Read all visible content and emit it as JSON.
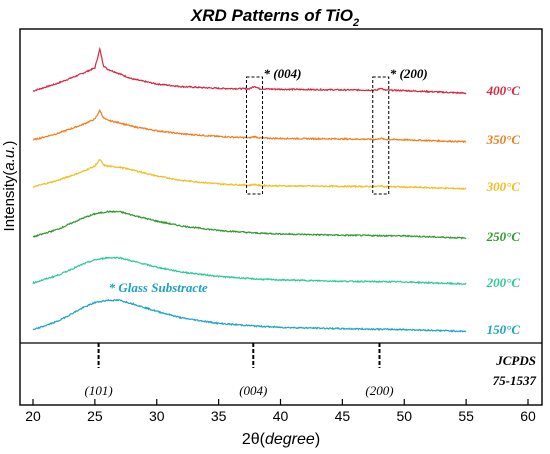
{
  "chart_data": {
    "type": "line",
    "title": "XRD Patterns of TiO",
    "title_subscript": "2",
    "xlabel_prefix": "2θ(",
    "xlabel_italic": "degree",
    "xlabel_suffix": ")",
    "ylabel_prefix": "Intensity(",
    "ylabel_italic": "a.u.",
    "ylabel_suffix": ")",
    "xlim": [
      20,
      60
    ],
    "x_ticks": [
      "20",
      "25",
      "30",
      "35",
      "40",
      "45",
      "50",
      "55",
      "60"
    ],
    "grid": false,
    "legend": "series labels at right end of each curve",
    "x_range_measured": [
      20,
      55
    ],
    "series": [
      {
        "name": "400°C",
        "color": "#d7263d",
        "x": [
          20,
          22,
          24,
          25,
          25.4,
          25.7,
          26,
          27,
          28,
          30,
          32,
          35,
          37.5,
          37.9,
          38.3,
          40,
          45,
          47.8,
          48.1,
          48.4,
          50,
          55
        ],
        "y": [
          0.0,
          0.35,
          0.8,
          1.05,
          1.9,
          1.15,
          1.0,
          0.78,
          0.55,
          0.32,
          0.2,
          0.12,
          0.1,
          0.22,
          0.1,
          0.08,
          0.05,
          0.04,
          0.14,
          0.04,
          0.02,
          -0.1
        ]
      },
      {
        "name": "350°C",
        "color": "#f07d1a",
        "x": [
          20,
          22,
          24,
          25,
          25.4,
          25.7,
          26,
          27,
          28,
          30,
          32,
          35,
          37.5,
          37.9,
          38.3,
          40,
          45,
          47.8,
          48.1,
          48.4,
          50,
          55
        ],
        "y": [
          0.0,
          0.3,
          0.7,
          0.95,
          1.35,
          1.0,
          0.9,
          0.78,
          0.62,
          0.42,
          0.28,
          0.16,
          0.1,
          0.16,
          0.09,
          0.07,
          0.05,
          0.03,
          0.08,
          0.03,
          0.01,
          -0.08
        ]
      },
      {
        "name": "300°C",
        "color": "#f2bd1d",
        "x": [
          20,
          22,
          24,
          25,
          25.4,
          25.7,
          26,
          27,
          28,
          30,
          32,
          35,
          37.5,
          37.9,
          38.3,
          40,
          45,
          47.8,
          48.1,
          48.4,
          50,
          55
        ],
        "y": [
          0.0,
          0.3,
          0.7,
          0.95,
          1.25,
          1.0,
          0.95,
          0.9,
          0.78,
          0.5,
          0.3,
          0.14,
          0.08,
          0.12,
          0.07,
          0.05,
          0.03,
          0.02,
          0.06,
          0.02,
          0.0,
          -0.08
        ]
      },
      {
        "name": "250°C",
        "color": "#2e9a2e",
        "x": [
          20,
          22,
          24,
          25,
          26,
          27,
          28,
          30,
          32,
          35,
          38,
          40,
          45,
          50,
          55
        ],
        "y": [
          0.0,
          0.35,
          0.85,
          1.05,
          1.15,
          1.15,
          1.0,
          0.72,
          0.5,
          0.3,
          0.18,
          0.14,
          0.08,
          0.05,
          -0.05
        ]
      },
      {
        "name": "200°C",
        "color": "#2cc99a",
        "x": [
          20,
          22,
          24,
          25,
          26,
          27,
          28,
          30,
          32,
          35,
          38,
          40,
          45,
          50,
          55
        ],
        "y": [
          0.0,
          0.35,
          0.85,
          1.05,
          1.15,
          1.15,
          1.0,
          0.72,
          0.5,
          0.3,
          0.18,
          0.14,
          0.08,
          0.05,
          -0.05
        ]
      },
      {
        "name": "150°C",
        "color": "#1ba3c6",
        "x": [
          20,
          22,
          24,
          25,
          26,
          27,
          28,
          30,
          32,
          35,
          38,
          40,
          45,
          50,
          55
        ],
        "y": [
          0.0,
          0.4,
          1.0,
          1.25,
          1.35,
          1.35,
          1.2,
          0.85,
          0.55,
          0.3,
          0.18,
          0.12,
          0.06,
          0.02,
          -0.06
        ]
      }
    ],
    "annotations": [
      {
        "text": "* (004)",
        "x": 37.9
      },
      {
        "text": "* (200)",
        "x": 48.1
      },
      {
        "text": "* Glass Substracte",
        "x": 27,
        "color": "#1ba3c6"
      }
    ],
    "reference": {
      "label_line1": "JCPDS",
      "label_line2": "75-1537",
      "peaks": [
        {
          "x": 25.3,
          "label": "(101)"
        },
        {
          "x": 37.8,
          "label": "(004)"
        },
        {
          "x": 48.0,
          "label": "(200)"
        }
      ]
    }
  }
}
